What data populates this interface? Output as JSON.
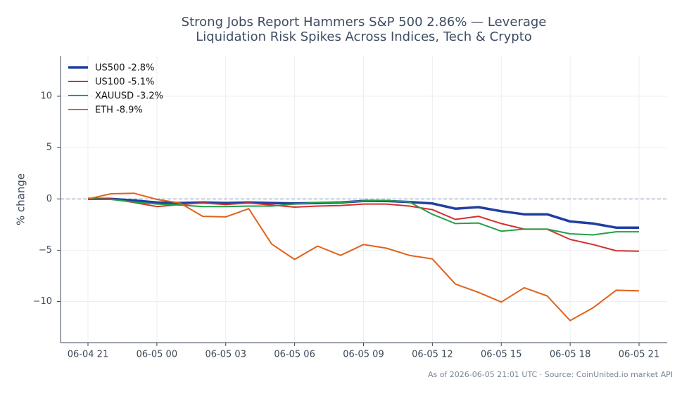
{
  "chart_data": {
    "type": "line",
    "title": [
      "Strong Jobs Report Hammers S&P 500 2.86% — Leverage",
      "Liquidation Risk Spikes Across Indices, Tech & Crypto"
    ],
    "y_label": "% change",
    "footnote": "As of 2026-06-05 21:01 UTC · Source: CoinUnited.io market API",
    "x": [
      "06-04 21",
      "06-04 22",
      "06-04 23",
      "06-05 00",
      "06-05 01",
      "06-05 02",
      "06-05 03",
      "06-05 04",
      "06-05 05",
      "06-05 06",
      "06-05 07",
      "06-05 08",
      "06-05 09",
      "06-05 10",
      "06-05 11",
      "06-05 12",
      "06-05 13",
      "06-05 14",
      "06-05 15",
      "06-05 16",
      "06-05 17",
      "06-05 18",
      "06-05 19",
      "06-05 20",
      "06-05 21"
    ],
    "xticks": [
      "06-04 21",
      "06-05 00",
      "06-05 03",
      "06-05 06",
      "06-05 09",
      "06-05 12",
      "06-05 15",
      "06-05 18",
      "06-05 21"
    ],
    "ylim": [
      -14,
      13.9
    ],
    "yticks": [
      {
        "value": -10,
        "label": "−10"
      },
      {
        "value": -5,
        "label": "−5"
      },
      0,
      5,
      10
    ],
    "grid": true,
    "zero_line": true,
    "legend": "upper-left",
    "series": [
      {
        "name": "US500 -2.8%",
        "color": "#1f3fa0",
        "width": 3.5,
        "values": [
          0,
          0,
          -0.15,
          -0.35,
          -0.4,
          -0.35,
          -0.4,
          -0.35,
          -0.4,
          -0.45,
          -0.4,
          -0.35,
          -0.2,
          -0.2,
          -0.3,
          -0.45,
          -0.95,
          -0.8,
          -1.2,
          -1.5,
          -1.5,
          -2.2,
          -2.4,
          -2.8,
          -2.8
        ]
      },
      {
        "name": "US100 -5.1%",
        "color": "#d3302c",
        "width": 2,
        "values": [
          0,
          0,
          -0.35,
          -0.75,
          -0.55,
          -0.4,
          -0.55,
          -0.4,
          -0.6,
          -0.8,
          -0.7,
          -0.65,
          -0.5,
          -0.5,
          -0.7,
          -1.05,
          -2.0,
          -1.7,
          -2.4,
          -2.95,
          -2.95,
          -3.95,
          -4.45,
          -5.05,
          -5.1
        ]
      },
      {
        "name": "XAUUSD -3.2%",
        "color": "#22a04b",
        "width": 2,
        "values": [
          0,
          -0.05,
          -0.3,
          -0.5,
          -0.6,
          -0.75,
          -0.75,
          -0.7,
          -0.7,
          -0.5,
          -0.35,
          -0.35,
          -0.2,
          -0.15,
          -0.3,
          -1.5,
          -2.4,
          -2.35,
          -3.15,
          -2.95,
          -2.95,
          -3.4,
          -3.5,
          -3.2,
          -3.2
        ]
      },
      {
        "name": "ETH -8.9%",
        "color": "#e0621c",
        "width": 2,
        "values": [
          0,
          0.5,
          0.55,
          -0.05,
          -0.4,
          -1.7,
          -1.75,
          -0.95,
          -4.4,
          -5.9,
          -4.6,
          -5.5,
          -4.45,
          -4.8,
          -5.5,
          -5.85,
          -8.3,
          -9.1,
          -10.05,
          -8.65,
          -9.45,
          -11.85,
          -10.6,
          -8.9,
          -8.95
        ]
      }
    ]
  }
}
